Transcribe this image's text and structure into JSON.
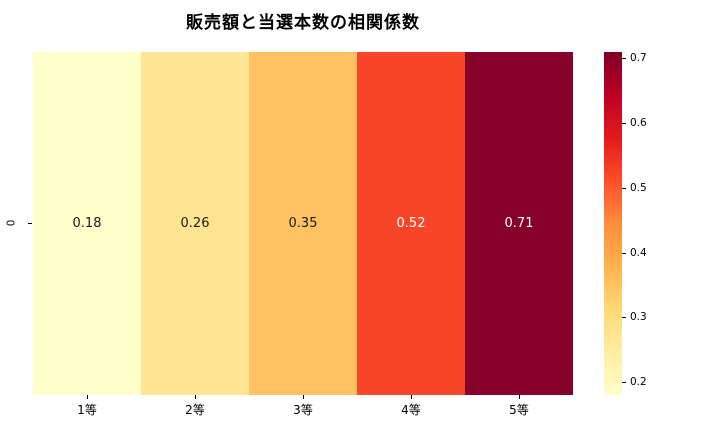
{
  "title": "販売額と当選本数の相関係数",
  "chart_data": {
    "type": "heatmap",
    "title": "販売額と当選本数の相関係数",
    "categories": [
      "1等",
      "2等",
      "3等",
      "4等",
      "5等"
    ],
    "row_labels": [
      "0"
    ],
    "values": [
      [
        0.18,
        0.26,
        0.35,
        0.52,
        0.71
      ]
    ],
    "colormap": "YlOrRd",
    "cells": [
      {
        "category": "1等",
        "value": "0.18",
        "color": "#ffffcc",
        "text_color": "#1a1a1a"
      },
      {
        "category": "2等",
        "value": "0.26",
        "color": "#ffe493",
        "text_color": "#1a1a1a"
      },
      {
        "category": "3等",
        "value": "0.35",
        "color": "#fec260",
        "text_color": "#1a1a1a"
      },
      {
        "category": "4等",
        "value": "0.52",
        "color": "#f84628",
        "text_color": "#ffffff"
      },
      {
        "category": "5等",
        "value": "0.71",
        "color": "#850129",
        "text_color": "#ffffff"
      }
    ],
    "colorbar": {
      "min": 0.18,
      "max": 0.71,
      "ticks": [
        {
          "label": "0.7",
          "value": 0.7
        },
        {
          "label": "0.6",
          "value": 0.6
        },
        {
          "label": "0.5",
          "value": 0.5
        },
        {
          "label": "0.4",
          "value": 0.4
        },
        {
          "label": "0.3",
          "value": 0.3
        },
        {
          "label": "0.2",
          "value": 0.2
        }
      ],
      "gradient_top_to_bottom": [
        "#800026",
        "#bd0026",
        "#e31a1c",
        "#fc4e2a",
        "#fd8d3c",
        "#feb24c",
        "#fed976",
        "#ffeda0",
        "#ffffcc"
      ]
    }
  }
}
